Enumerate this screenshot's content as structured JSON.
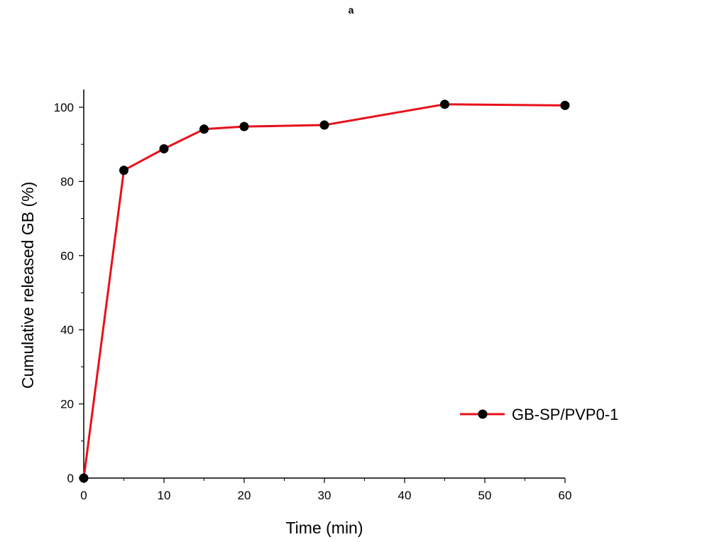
{
  "panel_label": "a",
  "chart_data": {
    "type": "line",
    "xlabel": "Time (min)",
    "ylabel": "Cumulative released GB (%)",
    "xlim": [
      0,
      60
    ],
    "ylim": [
      0,
      105
    ],
    "x_ticks": [
      0,
      10,
      20,
      30,
      40,
      50,
      60
    ],
    "y_ticks": [
      0,
      20,
      40,
      60,
      80,
      100
    ],
    "grid": false,
    "legend_position": "lower-right",
    "series": [
      {
        "name": "GB-SP/PVP0-1",
        "color": "#e8101a",
        "marker": "circle",
        "marker_color": "#000000",
        "x": [
          0,
          5,
          10,
          15,
          20,
          30,
          45,
          60
        ],
        "y": [
          0,
          83.0,
          88.8,
          94.1,
          94.8,
          95.2,
          100.8,
          100.5
        ]
      }
    ]
  }
}
